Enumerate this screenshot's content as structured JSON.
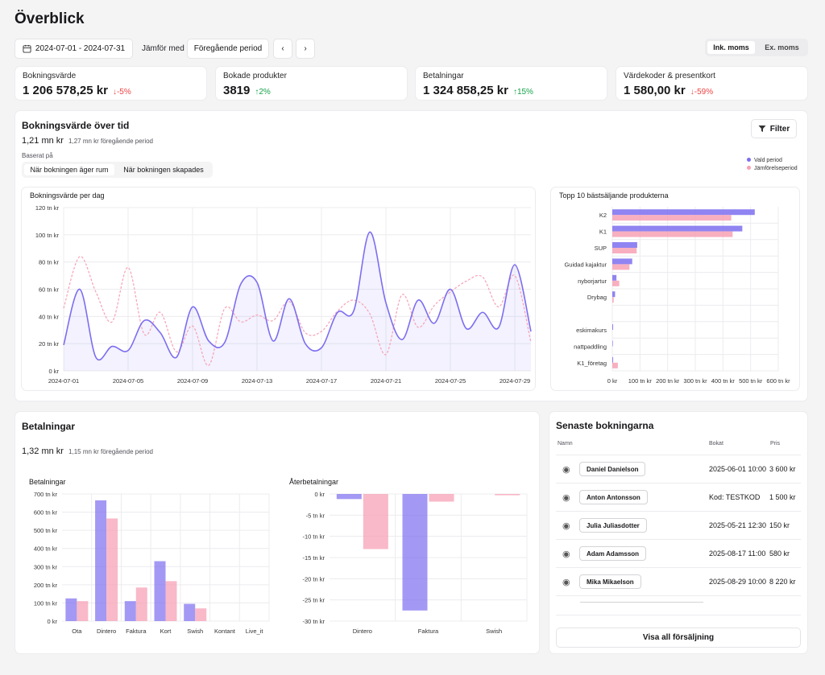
{
  "page_title": "Överblick",
  "toolbar": {
    "date_range": "2024-07-01 - 2024-07-31",
    "compare_label": "Jämför med",
    "compare_value": "Föregående period",
    "vat_incl": "Ink. moms",
    "vat_excl": "Ex. moms"
  },
  "kpis": [
    {
      "label": "Bokningsvärde",
      "value": "1 206 578,25 kr",
      "change": "-5%",
      "direction": "down"
    },
    {
      "label": "Bokade produkter",
      "value": "3819",
      "change": "2%",
      "direction": "up"
    },
    {
      "label": "Betalningar",
      "value": "1 324 858,25 kr",
      "change": "15%",
      "direction": "up"
    },
    {
      "label": "Värdekoder & presentkort",
      "value": "1 580,00 kr",
      "change": "-59%",
      "direction": "down"
    }
  ],
  "booking_section": {
    "title": "Bokningsvärde över tid",
    "value": "1,21 mn kr",
    "prev": "1,27 mn kr föregående period",
    "based_on": "Baserat på",
    "opt1": "När bokningen äger rum",
    "opt2": "När bokningen skapades",
    "filter": "Filter",
    "legend_current": "Vald period",
    "legend_prev": "Jämförelseperiod"
  },
  "colors": {
    "current": "#7c6ef0",
    "previous": "#f7a1b5"
  },
  "payments_section": {
    "title": "Betalningar",
    "value": "1,32 mn kr",
    "prev": "1,15 mn kr föregående period"
  },
  "recent": {
    "title": "Senaste bokningarna",
    "col_name": "Namn",
    "col_booked": "Bokat",
    "col_price": "Pris",
    "rows": [
      {
        "name": "Daniel Danielson",
        "booked": "2025-06-01 10:00",
        "price": "3 600 kr"
      },
      {
        "name": "Anton Antonsson",
        "booked": "Kod: TESTKOD",
        "price": "1 500 kr"
      },
      {
        "name": "Julia Juliasdotter",
        "booked": "2025-05-21 12:30",
        "price": "150 kr"
      },
      {
        "name": "Adam Adamsson",
        "booked": "2025-08-17 11:00",
        "price": "580 kr"
      },
      {
        "name": "Mika Mikaelson",
        "booked": "2025-08-29 10:00",
        "price": "8 220 kr"
      }
    ],
    "show_all": "Visa all försäljning"
  },
  "chart_data": [
    {
      "type": "area",
      "title": "Bokningsvärde per dag",
      "ylim": [
        0,
        120
      ],
      "y_ticks": [
        "0 kr",
        "20 tn kr",
        "40 tn kr",
        "60 tn kr",
        "80 tn kr",
        "100 tn kr",
        "120 tn kr"
      ],
      "x_ticks": [
        "2024-07-01",
        "2024-07-05",
        "2024-07-09",
        "2024-07-13",
        "2024-07-17",
        "2024-07-21",
        "2024-07-25",
        "2024-07-29"
      ],
      "series": [
        {
          "name": "Vald period",
          "values": [
            19,
            60,
            10,
            18,
            15,
            37,
            28,
            10,
            47,
            22,
            21,
            64,
            65,
            22,
            53,
            20,
            17,
            43,
            44,
            102,
            50,
            23,
            52,
            35,
            60,
            31,
            43,
            32,
            78,
            29
          ]
        },
        {
          "name": "Jämförelseperiod",
          "values": [
            46,
            84,
            58,
            36,
            76,
            27,
            43,
            14,
            33,
            4,
            46,
            36,
            41,
            37,
            51,
            28,
            29,
            44,
            52,
            42,
            12,
            56,
            32,
            48,
            58,
            66,
            69,
            47,
            70,
            21
          ]
        }
      ]
    },
    {
      "type": "bar",
      "title": "Topp 10 bästsäljande produkterna",
      "orientation": "horizontal",
      "categories": [
        "K2",
        "K1",
        "SUP",
        "Guidad kajaktur",
        "nyborjartur",
        "Drybag",
        "",
        "eskimakurs",
        "nattpaddling",
        "K1_företag"
      ],
      "xlim": [
        0,
        600
      ],
      "x_ticks": [
        "0 kr",
        "100 tn kr",
        "200 tn kr",
        "300 tn kr",
        "400 tn kr",
        "500 tn kr",
        "600 tn kr"
      ],
      "series": [
        {
          "name": "Vald period",
          "values": [
            515,
            470,
            90,
            72,
            15,
            10,
            0,
            3,
            2,
            3
          ]
        },
        {
          "name": "Jämförelseperiod",
          "values": [
            430,
            435,
            88,
            62,
            25,
            5,
            0,
            0,
            0,
            20
          ]
        }
      ]
    },
    {
      "type": "bar",
      "title": "Betalningar",
      "categories": [
        "Ota",
        "Dintero",
        "Faktura",
        "Kort",
        "Swish",
        "Kontant",
        "Live_it"
      ],
      "ylim": [
        0,
        700
      ],
      "y_ticks": [
        "0 kr",
        "100 tn kr",
        "200 tn kr",
        "300 tn kr",
        "400 tn kr",
        "500 tn kr",
        "600 tn kr",
        "700 tn kr"
      ],
      "series": [
        {
          "name": "Vald period",
          "values": [
            125,
            665,
            110,
            330,
            95,
            0,
            0
          ]
        },
        {
          "name": "Jämförelseperiod",
          "values": [
            110,
            565,
            185,
            220,
            70,
            0,
            0
          ]
        }
      ]
    },
    {
      "type": "bar",
      "title": "Återbetalningar",
      "categories": [
        "Dintero",
        "Faktura",
        "Swish"
      ],
      "ylim": [
        -30,
        0
      ],
      "y_ticks": [
        "0 kr",
        "-5 tn kr",
        "-10 tn kr",
        "-15 tn kr",
        "-20 tn kr",
        "-25 tn kr",
        "-30 tn kr"
      ],
      "series": [
        {
          "name": "Vald period",
          "values": [
            -1.2,
            -27.5,
            0
          ]
        },
        {
          "name": "Jämförelseperiod",
          "values": [
            -13,
            -1.8,
            -0.3
          ]
        }
      ]
    }
  ]
}
